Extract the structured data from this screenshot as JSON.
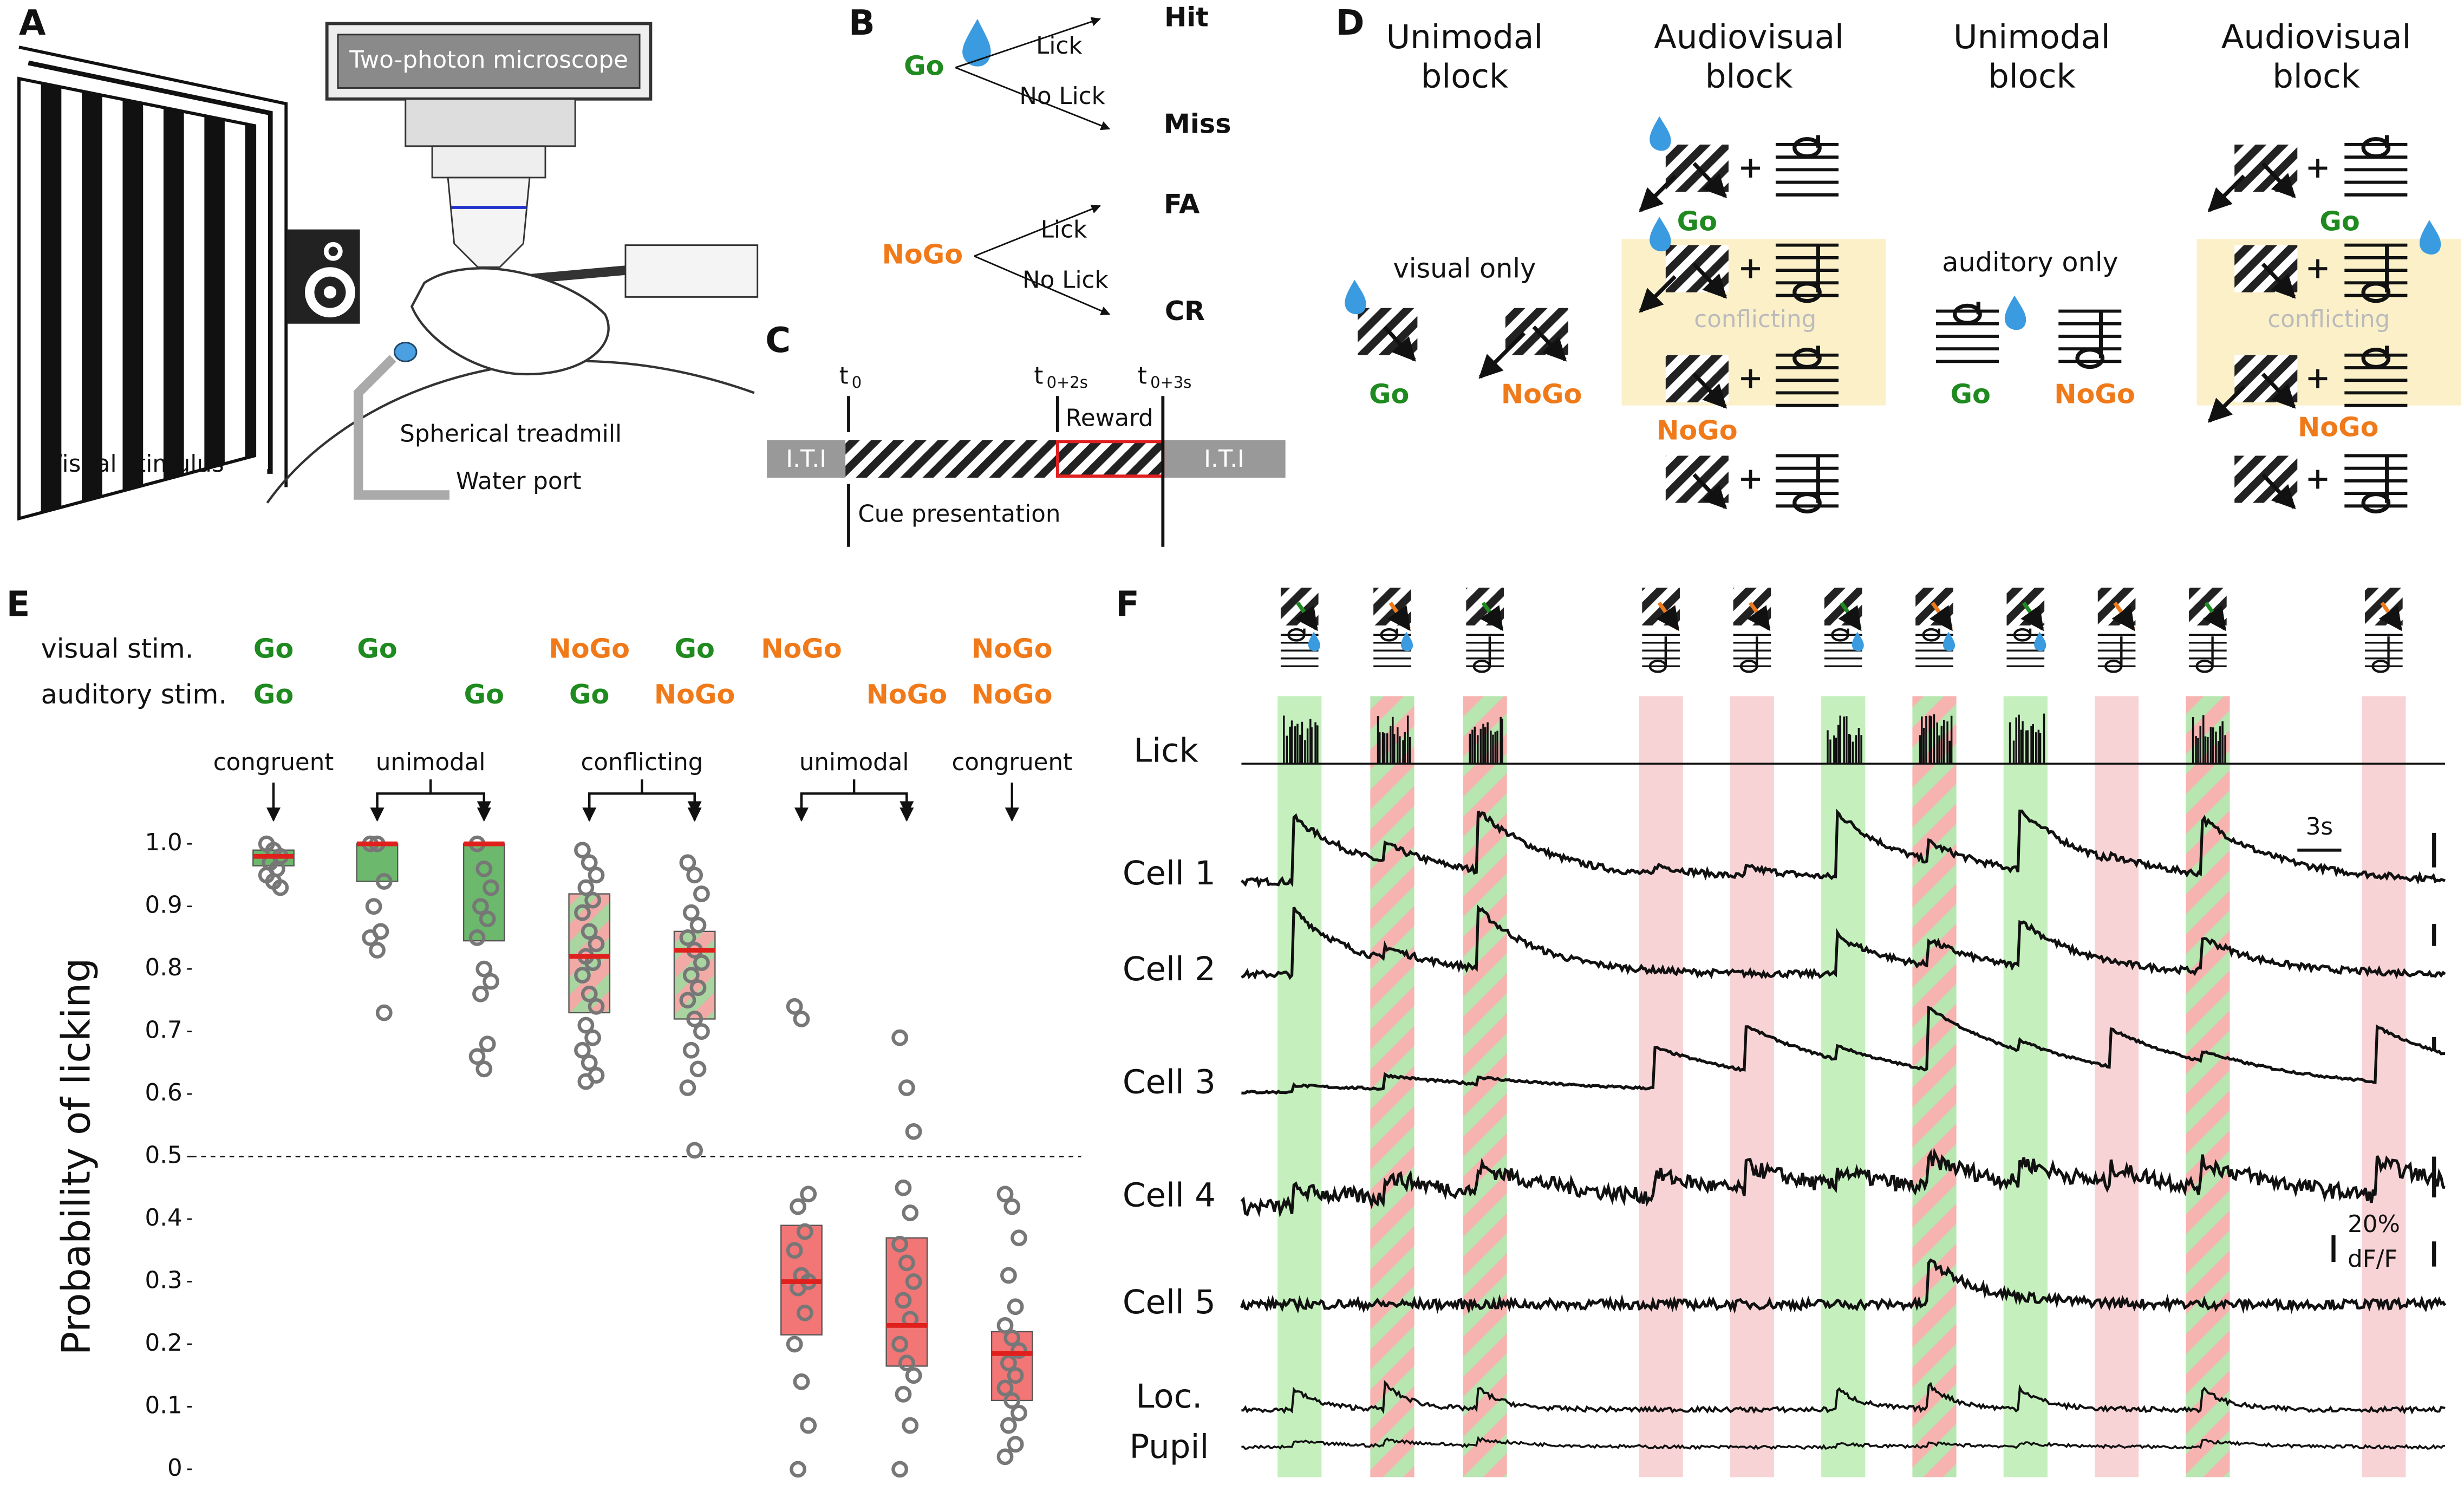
{
  "panel_labels": [
    "A",
    "B",
    "C",
    "D",
    "E",
    "F"
  ],
  "panel_a": {
    "microscope": "Two-photon microscope",
    "stimulus": "Visual stimulus",
    "treadmill": "Spherical treadmill",
    "water_port": "Water port"
  },
  "panel_b": {
    "go": "Go",
    "nogo": "NoGo",
    "lick_1": "Lick",
    "no_lick_1": "No Lick",
    "hit": "Hit",
    "miss": "Miss",
    "lick_2": "Lick",
    "no_lick_2": "No Lick",
    "fa": "FA",
    "cr": "CR"
  },
  "panel_c": {
    "iti_1": "I.T.I",
    "iti_2": "I.T.I",
    "t0": "t",
    "t0_sub": "0",
    "t2": "t",
    "t2_sub": "0+2s",
    "t3": "t",
    "t3_sub": "0+3s",
    "reward": "Reward",
    "cue": "Cue presentation"
  },
  "panel_d": {
    "blocks": [
      [
        "Unimodal",
        "block"
      ],
      [
        "Audiovisual",
        "block"
      ],
      [
        "Unimodal",
        "block"
      ],
      [
        "Audiovisual",
        "block"
      ]
    ],
    "visual_only": "visual only",
    "auditory_only": "auditory only",
    "conflicting_1": "conflicting",
    "conflicting_2": "conflicting",
    "labels": [
      "Go",
      "NoGo",
      "Go",
      "NoGo",
      "Go",
      "NoGo",
      "Go",
      "NoGo"
    ]
  },
  "colors": {
    "Go": "#1f8a1f",
    "NoGo": "#f07a1a"
  },
  "chart_data": {
    "type": "box",
    "row_labels": [
      "visual stim.",
      "auditory stim."
    ],
    "visual": [
      "Go",
      "Go",
      null,
      "NoGo",
      "Go",
      "NoGo",
      null,
      "NoGo"
    ],
    "auditory": [
      "Go",
      null,
      "Go",
      "Go",
      "NoGo",
      null,
      "NoGo",
      "NoGo"
    ],
    "groups": [
      "congruent",
      "unimodal",
      "conflicting",
      "unimodal",
      "congruent"
    ],
    "ylabel": "Probability of licking",
    "ylim": [
      0,
      1
    ],
    "yticks": [
      0,
      0.1,
      0.2,
      0.3,
      0.4,
      0.5,
      0.6,
      0.7,
      0.8,
      0.9,
      {
        "value": 1,
        "label": "1.0"
      }
    ],
    "threshold": 0.5,
    "styles": {
      "go": "#6cb86c",
      "nogo": "#f27676",
      "median": "#e0201c",
      "point": "#777777"
    },
    "series": [
      {
        "style": "go",
        "median": 0.98,
        "q1": 0.965,
        "q3": 0.99,
        "points": [
          1.0,
          0.99,
          0.98,
          0.97,
          0.96,
          0.95,
          0.94,
          0.93
        ]
      },
      {
        "style": "go",
        "median": 1.0,
        "q1": 0.94,
        "q3": 1.0,
        "points": [
          1.0,
          1.0,
          0.94,
          0.9,
          0.86,
          0.85,
          0.83,
          0.73
        ]
      },
      {
        "style": "go",
        "median": 1.0,
        "q1": 0.845,
        "q3": 1.0,
        "points": [
          1.0,
          0.96,
          0.93,
          0.9,
          0.88,
          0.85,
          0.8,
          0.78,
          0.76,
          0.68,
          0.66,
          0.64
        ]
      },
      {
        "style": "conflict",
        "median": 0.82,
        "q1": 0.73,
        "q3": 0.92,
        "points": [
          0.99,
          0.97,
          0.95,
          0.93,
          0.91,
          0.89,
          0.86,
          0.84,
          0.82,
          0.81,
          0.79,
          0.76,
          0.74,
          0.71,
          0.69,
          0.67,
          0.65,
          0.63,
          0.62
        ]
      },
      {
        "style": "conflict",
        "median": 0.83,
        "q1": 0.72,
        "q3": 0.86,
        "points": [
          0.97,
          0.95,
          0.92,
          0.89,
          0.87,
          0.85,
          0.83,
          0.81,
          0.79,
          0.77,
          0.75,
          0.72,
          0.7,
          0.67,
          0.64,
          0.61,
          0.51
        ]
      },
      {
        "style": "nogo",
        "median": 0.3,
        "q1": 0.215,
        "q3": 0.39,
        "points": [
          0.74,
          0.72,
          0.44,
          0.42,
          0.38,
          0.35,
          0.31,
          0.3,
          0.29,
          0.25,
          0.2,
          0.14,
          0.07,
          0.0
        ]
      },
      {
        "style": "nogo",
        "median": 0.23,
        "q1": 0.165,
        "q3": 0.37,
        "points": [
          0.69,
          0.61,
          0.54,
          0.45,
          0.41,
          0.36,
          0.33,
          0.3,
          0.27,
          0.24,
          0.2,
          0.17,
          0.15,
          0.12,
          0.07,
          0.0
        ]
      },
      {
        "style": "nogo",
        "median": 0.185,
        "q1": 0.11,
        "q3": 0.22,
        "points": [
          0.44,
          0.42,
          0.37,
          0.31,
          0.26,
          0.23,
          0.21,
          0.19,
          0.17,
          0.15,
          0.13,
          0.11,
          0.09,
          0.07,
          0.04,
          0.02
        ]
      }
    ]
  },
  "panel_f": {
    "trace_labels": [
      "Lick",
      "Cell 1",
      "Cell 2",
      "Cell 3",
      "Cell 4",
      "Cell 5",
      "Loc.",
      "Pupil"
    ],
    "time_scale": "3s",
    "df_scale": [
      "20%",
      "dF/F"
    ]
  }
}
